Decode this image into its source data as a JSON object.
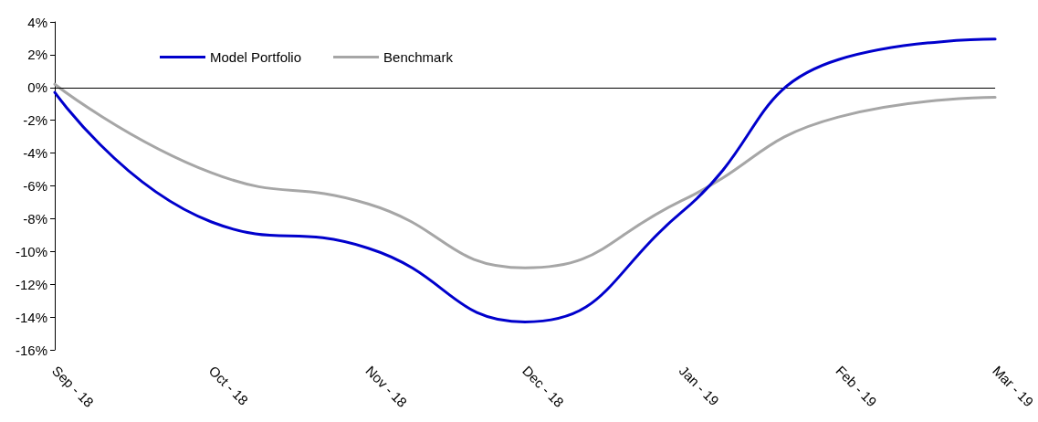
{
  "chart_data": {
    "type": "line",
    "categories": [
      "Sep - 18",
      "Oct - 18",
      "Nov - 18",
      "Dec - 18",
      "Jan - 19",
      "Feb - 19",
      "Mar - 19"
    ],
    "series": [
      {
        "name": "Model Portfolio",
        "color": "#0000cc",
        "values": [
          -0.3,
          -8.2,
          -9.8,
          -14.3,
          -7.6,
          1.7,
          2.95
        ]
      },
      {
        "name": "Benchmark",
        "color": "#a6a6a6",
        "values": [
          0.2,
          -5.2,
          -7.1,
          -11,
          -6.9,
          -1.8,
          -0.6
        ]
      }
    ],
    "ylim": [
      -16,
      4
    ],
    "yticks": [
      {
        "value": -16,
        "label": "-16%"
      },
      {
        "value": -14,
        "label": "-14%"
      },
      {
        "value": -12,
        "label": "-12%"
      },
      {
        "value": -10,
        "label": "-10%"
      },
      {
        "value": -8,
        "label": "-8%"
      },
      {
        "value": -6,
        "label": "-6%"
      },
      {
        "value": -4,
        "label": "-4%"
      },
      {
        "value": -2,
        "label": "-2%"
      },
      {
        "value": 0,
        "label": "0%"
      },
      {
        "value": 2,
        "label": "2%"
      },
      {
        "value": 4,
        "label": "4%"
      }
    ],
    "ref_lines": [
      {
        "axis": "y",
        "value": 0,
        "color": "#000000"
      }
    ],
    "grid": false,
    "legend": "top left",
    "marker": "none",
    "line_style": "solid"
  }
}
